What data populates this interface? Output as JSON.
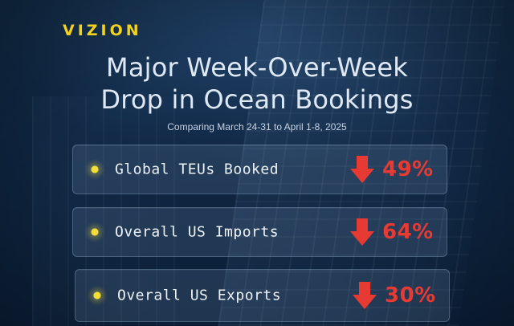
{
  "brand": {
    "logo_text": "VIZION"
  },
  "headline": {
    "line1": "Major Week-Over-Week",
    "line2": "Drop in Ocean Bookings",
    "subtitle": "Comparing March 24-31 to April 1-8, 2025"
  },
  "metrics": [
    {
      "label": "Global TEUs Booked",
      "change": "49%",
      "direction": "down"
    },
    {
      "label": "Overall US Imports",
      "change": "64%",
      "direction": "down"
    },
    {
      "label": "Overall US Exports",
      "change": "30%",
      "direction": "down"
    }
  ],
  "colors": {
    "brand_yellow": "#f2d21c",
    "decline_red": "#e63a33",
    "background_navy": "#0f2744",
    "bullet_yellow": "#f3de3a"
  },
  "icons": {
    "bullet": "yellow-dot-icon",
    "change": "down-arrow-icon"
  }
}
